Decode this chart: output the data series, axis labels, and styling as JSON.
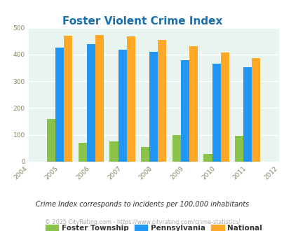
{
  "title": "Foster Violent Crime Index",
  "years": [
    2005,
    2006,
    2007,
    2008,
    2009,
    2010,
    2011
  ],
  "foster": [
    160,
    70,
    75,
    55,
    100,
    28,
    96
  ],
  "pennsylvania": [
    425,
    440,
    417,
    410,
    380,
    366,
    353
  ],
  "national": [
    470,
    473,
    467,
    455,
    432,
    407,
    387
  ],
  "color_foster": "#8bc34a",
  "color_pa": "#2196f3",
  "color_national": "#ffa726",
  "xlim": [
    2004,
    2012
  ],
  "ylim": [
    0,
    500
  ],
  "yticks": [
    0,
    100,
    200,
    300,
    400,
    500
  ],
  "xticks": [
    2004,
    2005,
    2006,
    2007,
    2008,
    2009,
    2010,
    2011,
    2012
  ],
  "bg_color": "#e8f4f0",
  "title_color": "#1a6faf",
  "legend_labels": [
    "Foster Township",
    "Pennsylvania",
    "National"
  ],
  "footnote1": "Crime Index corresponds to incidents per 100,000 inhabitants",
  "footnote2": "© 2025 CityRating.com - https://www.cityrating.com/crime-statistics/",
  "bar_width": 0.27
}
